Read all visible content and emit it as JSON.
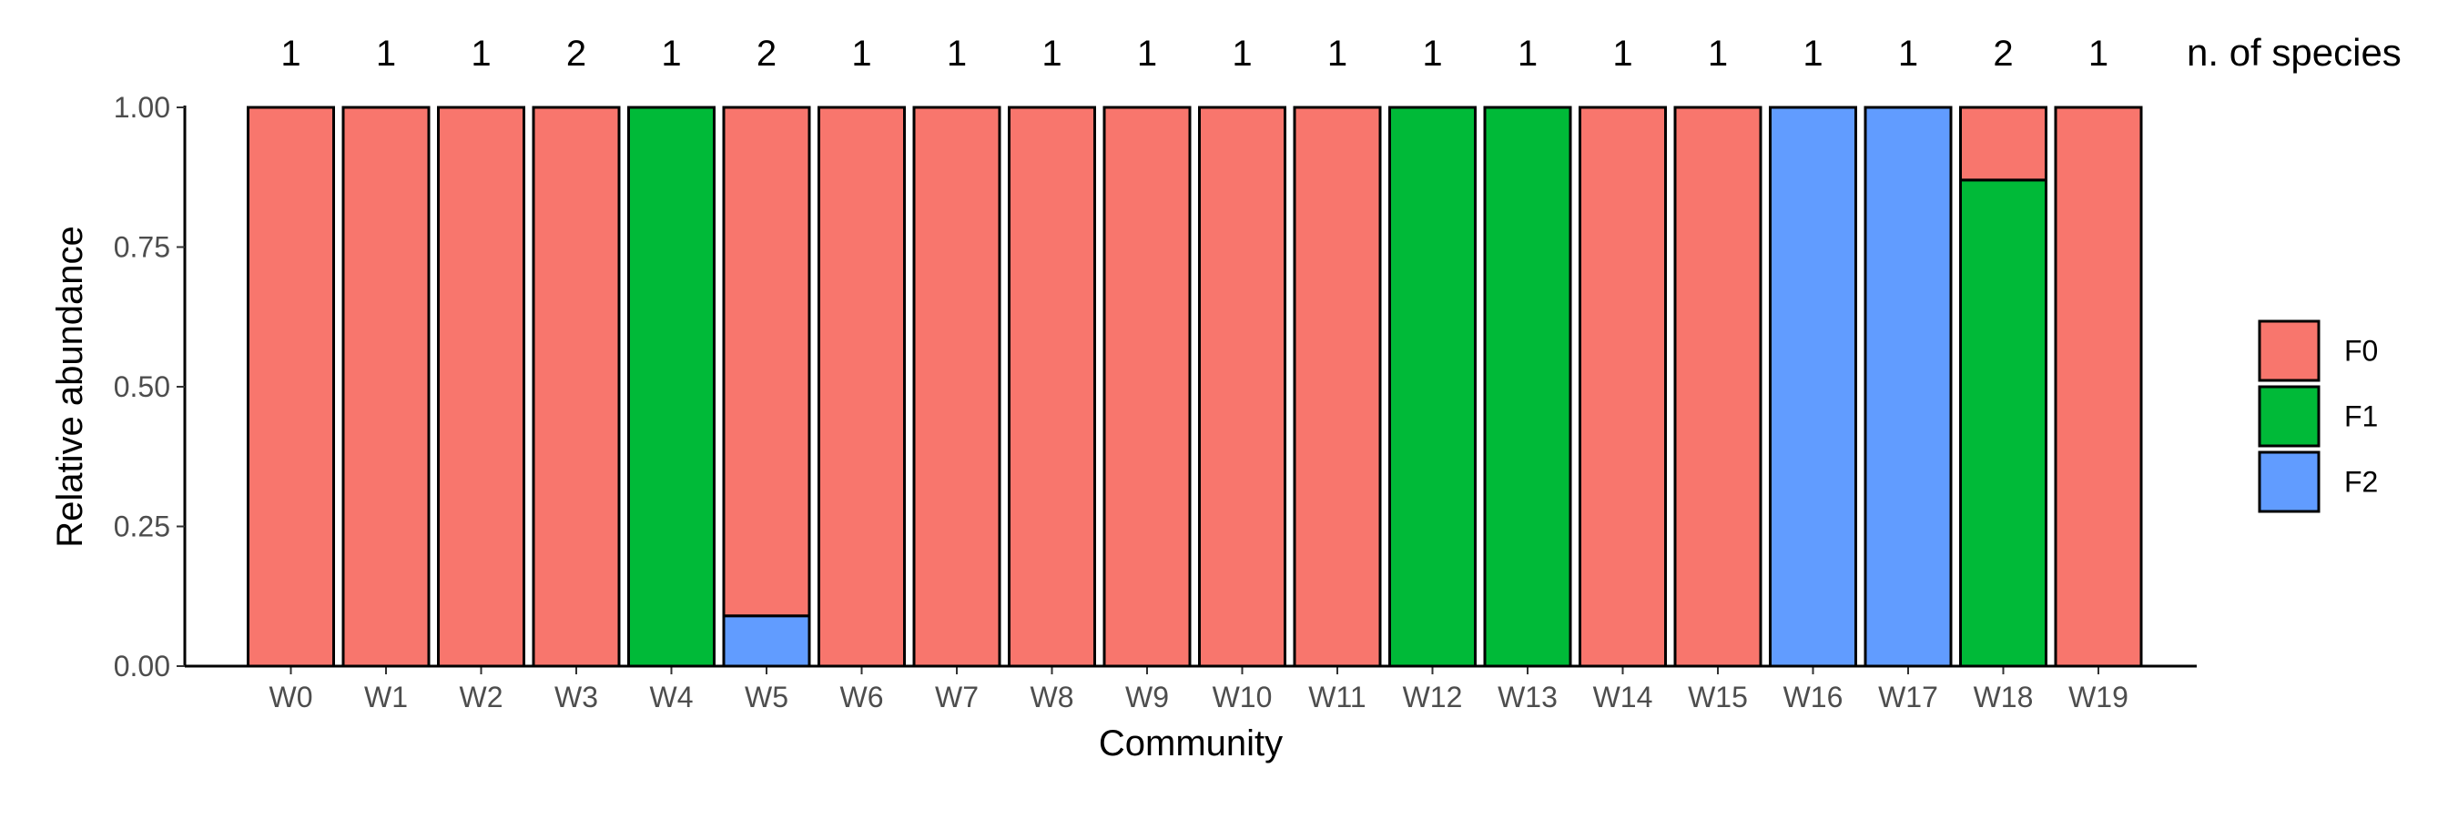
{
  "chart_data": {
    "type": "bar",
    "stacked": true,
    "xlabel": "Community",
    "ylabel": "Relative abundance",
    "ylim": [
      0,
      1
    ],
    "yticks": [
      "0.00",
      "0.25",
      "0.50",
      "0.75",
      "1.00"
    ],
    "categories": [
      "W0",
      "W1",
      "W2",
      "W3",
      "W4",
      "W5",
      "W6",
      "W7",
      "W8",
      "W9",
      "W10",
      "W11",
      "W12",
      "W13",
      "W14",
      "W15",
      "W16",
      "W17",
      "W18",
      "W19"
    ],
    "species_counts": [
      1,
      1,
      1,
      2,
      1,
      2,
      1,
      1,
      1,
      1,
      1,
      1,
      1,
      1,
      1,
      1,
      1,
      1,
      2,
      1
    ],
    "species_label": "n. of species",
    "series": [
      {
        "name": "F0",
        "color": "#F8766D",
        "values": [
          1,
          1,
          1,
          1,
          0,
          0.91,
          1,
          1,
          1,
          1,
          1,
          1,
          0,
          0,
          1,
          1,
          0,
          0,
          0.13,
          1
        ]
      },
      {
        "name": "F1",
        "color": "#00BA38",
        "values": [
          0,
          0,
          0,
          0,
          1,
          0,
          0,
          0,
          0,
          0,
          0,
          0,
          1,
          1,
          0,
          0,
          0,
          0,
          0.87,
          0
        ]
      },
      {
        "name": "F2",
        "color": "#619CFF",
        "values": [
          0,
          0,
          0,
          0,
          0,
          0.09,
          0,
          0,
          0,
          0,
          0,
          0,
          0,
          0,
          0,
          0,
          1,
          1,
          0,
          0
        ]
      }
    ],
    "stack_order": [
      "F2",
      "F1",
      "F0"
    ],
    "legend": {
      "position": "right",
      "items": [
        "F0",
        "F1",
        "F2"
      ]
    },
    "grid": false
  }
}
